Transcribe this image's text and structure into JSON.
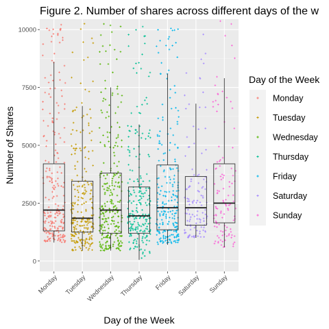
{
  "chart_data": {
    "type": "scatter",
    "title": "Figure 2. Number of shares across different days of the w",
    "xlabel": "Day of the Week",
    "ylabel": "Number of Shares",
    "legend_title": "Day of the Week",
    "legend_position": "right",
    "categories": [
      "Monday",
      "Tuesday",
      "Wednesday",
      "Thursday",
      "Friday",
      "Saturday",
      "Sunday"
    ],
    "colors": [
      "#F8766D",
      "#C49A00",
      "#53B400",
      "#00C094",
      "#00B6EB",
      "#A58AFF",
      "#FB61D7"
    ],
    "yticks": [
      0,
      2500,
      5000,
      7500,
      10000
    ],
    "ytick_labels": [
      "0",
      "2500",
      "5000",
      "7500",
      "10000"
    ],
    "ylim": [
      -450,
      10450
    ],
    "grid": true,
    "boxplots": [
      {
        "name": "Monday",
        "whisker_low": 800,
        "q1": 1300,
        "median": 2200,
        "q3": 4200,
        "whisker_high": 8600
      },
      {
        "name": "Tuesday",
        "whisker_low": 450,
        "q1": 1250,
        "median": 1850,
        "q3": 3450,
        "whisker_high": 6700
      },
      {
        "name": "Wednesday",
        "whisker_low": 450,
        "q1": 1200,
        "median": 2200,
        "q3": 3800,
        "whisker_high": 7500
      },
      {
        "name": "Thursday",
        "whisker_low": 50,
        "q1": 1200,
        "median": 1950,
        "q3": 3200,
        "whisker_high": 5900
      },
      {
        "name": "Friday",
        "whisker_low": 700,
        "q1": 1350,
        "median": 2300,
        "q3": 4150,
        "whisker_high": 8100
      },
      {
        "name": "Saturday",
        "whisker_low": 1000,
        "q1": 1550,
        "median": 2300,
        "q3": 3650,
        "whisker_high": 6800
      },
      {
        "name": "Sunday",
        "whisker_low": 600,
        "q1": 1650,
        "median": 2500,
        "q3": 4200,
        "whisker_high": 7900
      }
    ],
    "points_per_day": [
      230,
      250,
      270,
      240,
      240,
      120,
      110
    ]
  }
}
